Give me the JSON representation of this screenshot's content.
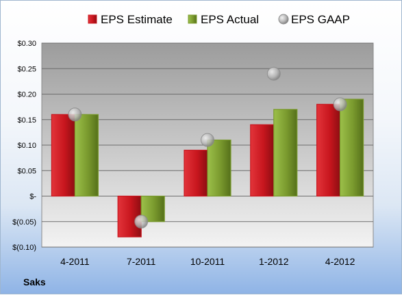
{
  "company_label": "Saks",
  "colors": {
    "estimate": "#c8161e",
    "actual": "#7a9a2e",
    "gaap": "#b5b5b5",
    "plot_top": "#9c9c9c",
    "plot_bottom": "#f3f3f3"
  },
  "chart_data": {
    "type": "bar",
    "categories": [
      "4-2011",
      "7-2011",
      "10-2011",
      "1-2012",
      "4-2012"
    ],
    "series": [
      {
        "name": "EPS Estimate",
        "type": "bar",
        "values": [
          0.16,
          -0.08,
          0.09,
          0.14,
          0.18
        ]
      },
      {
        "name": "EPS Actual",
        "type": "bar",
        "values": [
          0.16,
          -0.05,
          0.11,
          0.17,
          0.19
        ]
      },
      {
        "name": "EPS GAAP",
        "type": "scatter",
        "values": [
          0.16,
          -0.05,
          0.11,
          0.24,
          0.18
        ]
      }
    ],
    "ylim": [
      -0.1,
      0.3
    ],
    "yticks": [
      -0.1,
      -0.05,
      0,
      0.05,
      0.1,
      0.15,
      0.2,
      0.25,
      0.3
    ],
    "ytick_labels": [
      "$(0.10)",
      "$(0.05)",
      "$-",
      "$0.05",
      "$0.10",
      "$0.15",
      "$0.20",
      "$0.25",
      "$0.30"
    ],
    "grid": true,
    "legend": "top"
  }
}
